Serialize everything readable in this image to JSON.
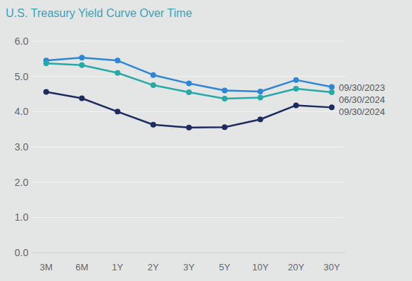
{
  "chart_data": {
    "type": "line",
    "title": "U.S. Treasury Yield Curve Over Time",
    "categories": [
      "3M",
      "6M",
      "1Y",
      "2Y",
      "3Y",
      "5Y",
      "10Y",
      "20Y",
      "30Y"
    ],
    "series": [
      {
        "name": "09/30/2023",
        "color": "#2e86d6",
        "values": [
          5.45,
          5.53,
          5.45,
          5.04,
          4.8,
          4.6,
          4.57,
          4.9,
          4.7
        ]
      },
      {
        "name": "06/30/2024",
        "color": "#27a9a6",
        "values": [
          5.37,
          5.32,
          5.1,
          4.75,
          4.55,
          4.37,
          4.4,
          4.65,
          4.55
        ]
      },
      {
        "name": "09/30/2024",
        "color": "#1d2b5e",
        "values": [
          4.56,
          4.38,
          4.0,
          3.63,
          3.55,
          3.56,
          3.78,
          4.18,
          4.12
        ]
      }
    ],
    "ylim": [
      0,
      6
    ],
    "yticks": [
      {
        "value": 0,
        "label": "0.0"
      },
      {
        "value": 1,
        "label": "1.0"
      },
      {
        "value": 2,
        "label": "2.0"
      },
      {
        "value": 3,
        "label": "3.0"
      },
      {
        "value": 4,
        "label": "4.0"
      },
      {
        "value": 5,
        "label": "5.0"
      },
      {
        "value": 6,
        "label": "6.0"
      }
    ],
    "grid": true,
    "legend": "right",
    "marker": "circle"
  }
}
